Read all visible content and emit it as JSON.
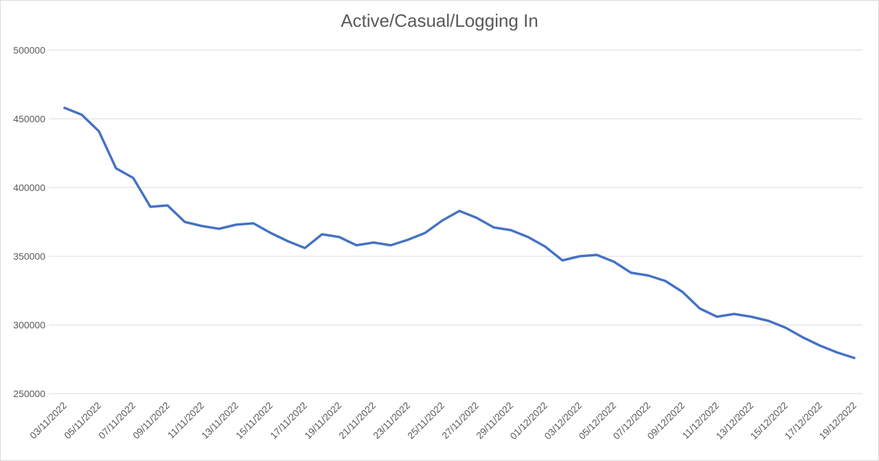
{
  "window": {
    "background": "#ffffff",
    "border_color": "#d9d9d9"
  },
  "chart_data": {
    "type": "line",
    "title": "Active/Casual/Logging In",
    "line_color": "#4472c4",
    "line_width": 3.5,
    "text_color": "#595959",
    "gridline_color": "#d9d9d9",
    "grid": true,
    "legend": "none",
    "ylim": [
      250000,
      500000
    ],
    "y_ticks": [
      500000,
      450000,
      400000,
      350000,
      300000,
      250000
    ],
    "x": [
      "03/11/2022",
      "04/11/2022",
      "05/11/2022",
      "06/11/2022",
      "07/11/2022",
      "08/11/2022",
      "09/11/2022",
      "10/11/2022",
      "11/11/2022",
      "12/11/2022",
      "13/11/2022",
      "14/11/2022",
      "15/11/2022",
      "16/11/2022",
      "17/11/2022",
      "18/11/2022",
      "19/11/2022",
      "20/11/2022",
      "21/11/2022",
      "22/11/2022",
      "23/11/2022",
      "24/11/2022",
      "25/11/2022",
      "26/11/2022",
      "27/11/2022",
      "28/11/2022",
      "29/11/2022",
      "30/11/2022",
      "01/12/2022",
      "02/12/2022",
      "03/12/2022",
      "04/12/2022",
      "05/12/2022",
      "06/12/2022",
      "07/12/2022",
      "08/12/2022",
      "09/12/2022",
      "10/12/2022",
      "11/12/2022",
      "12/12/2022",
      "13/12/2022",
      "14/12/2022",
      "15/12/2022",
      "16/12/2022",
      "17/12/2022",
      "18/12/2022",
      "19/12/2022"
    ],
    "values": [
      458000,
      453000,
      441000,
      414000,
      407000,
      386000,
      387000,
      375000,
      372000,
      370000,
      373000,
      374000,
      367000,
      361000,
      356000,
      366000,
      364000,
      358000,
      360000,
      358000,
      362000,
      367000,
      376000,
      383000,
      378000,
      371000,
      369000,
      364000,
      357000,
      347000,
      350000,
      351000,
      346000,
      338000,
      336000,
      332000,
      324000,
      312000,
      306000,
      308000,
      306000,
      303000,
      298000,
      291000,
      285000,
      280000,
      276000
    ],
    "x_tick_labels": [
      "03/11/2022",
      "05/11/2022",
      "07/11/2022",
      "09/11/2022",
      "11/11/2022",
      "13/11/2022",
      "15/11/2022",
      "17/11/2022",
      "19/11/2022",
      "21/11/2022",
      "23/11/2022",
      "25/11/2022",
      "27/11/2022",
      "29/11/2022",
      "01/12/2022",
      "03/12/2022",
      "05/12/2022",
      "07/12/2022",
      "09/12/2022",
      "11/12/2022",
      "13/12/2022",
      "15/12/2022",
      "17/12/2022",
      "19/12/2022"
    ]
  }
}
